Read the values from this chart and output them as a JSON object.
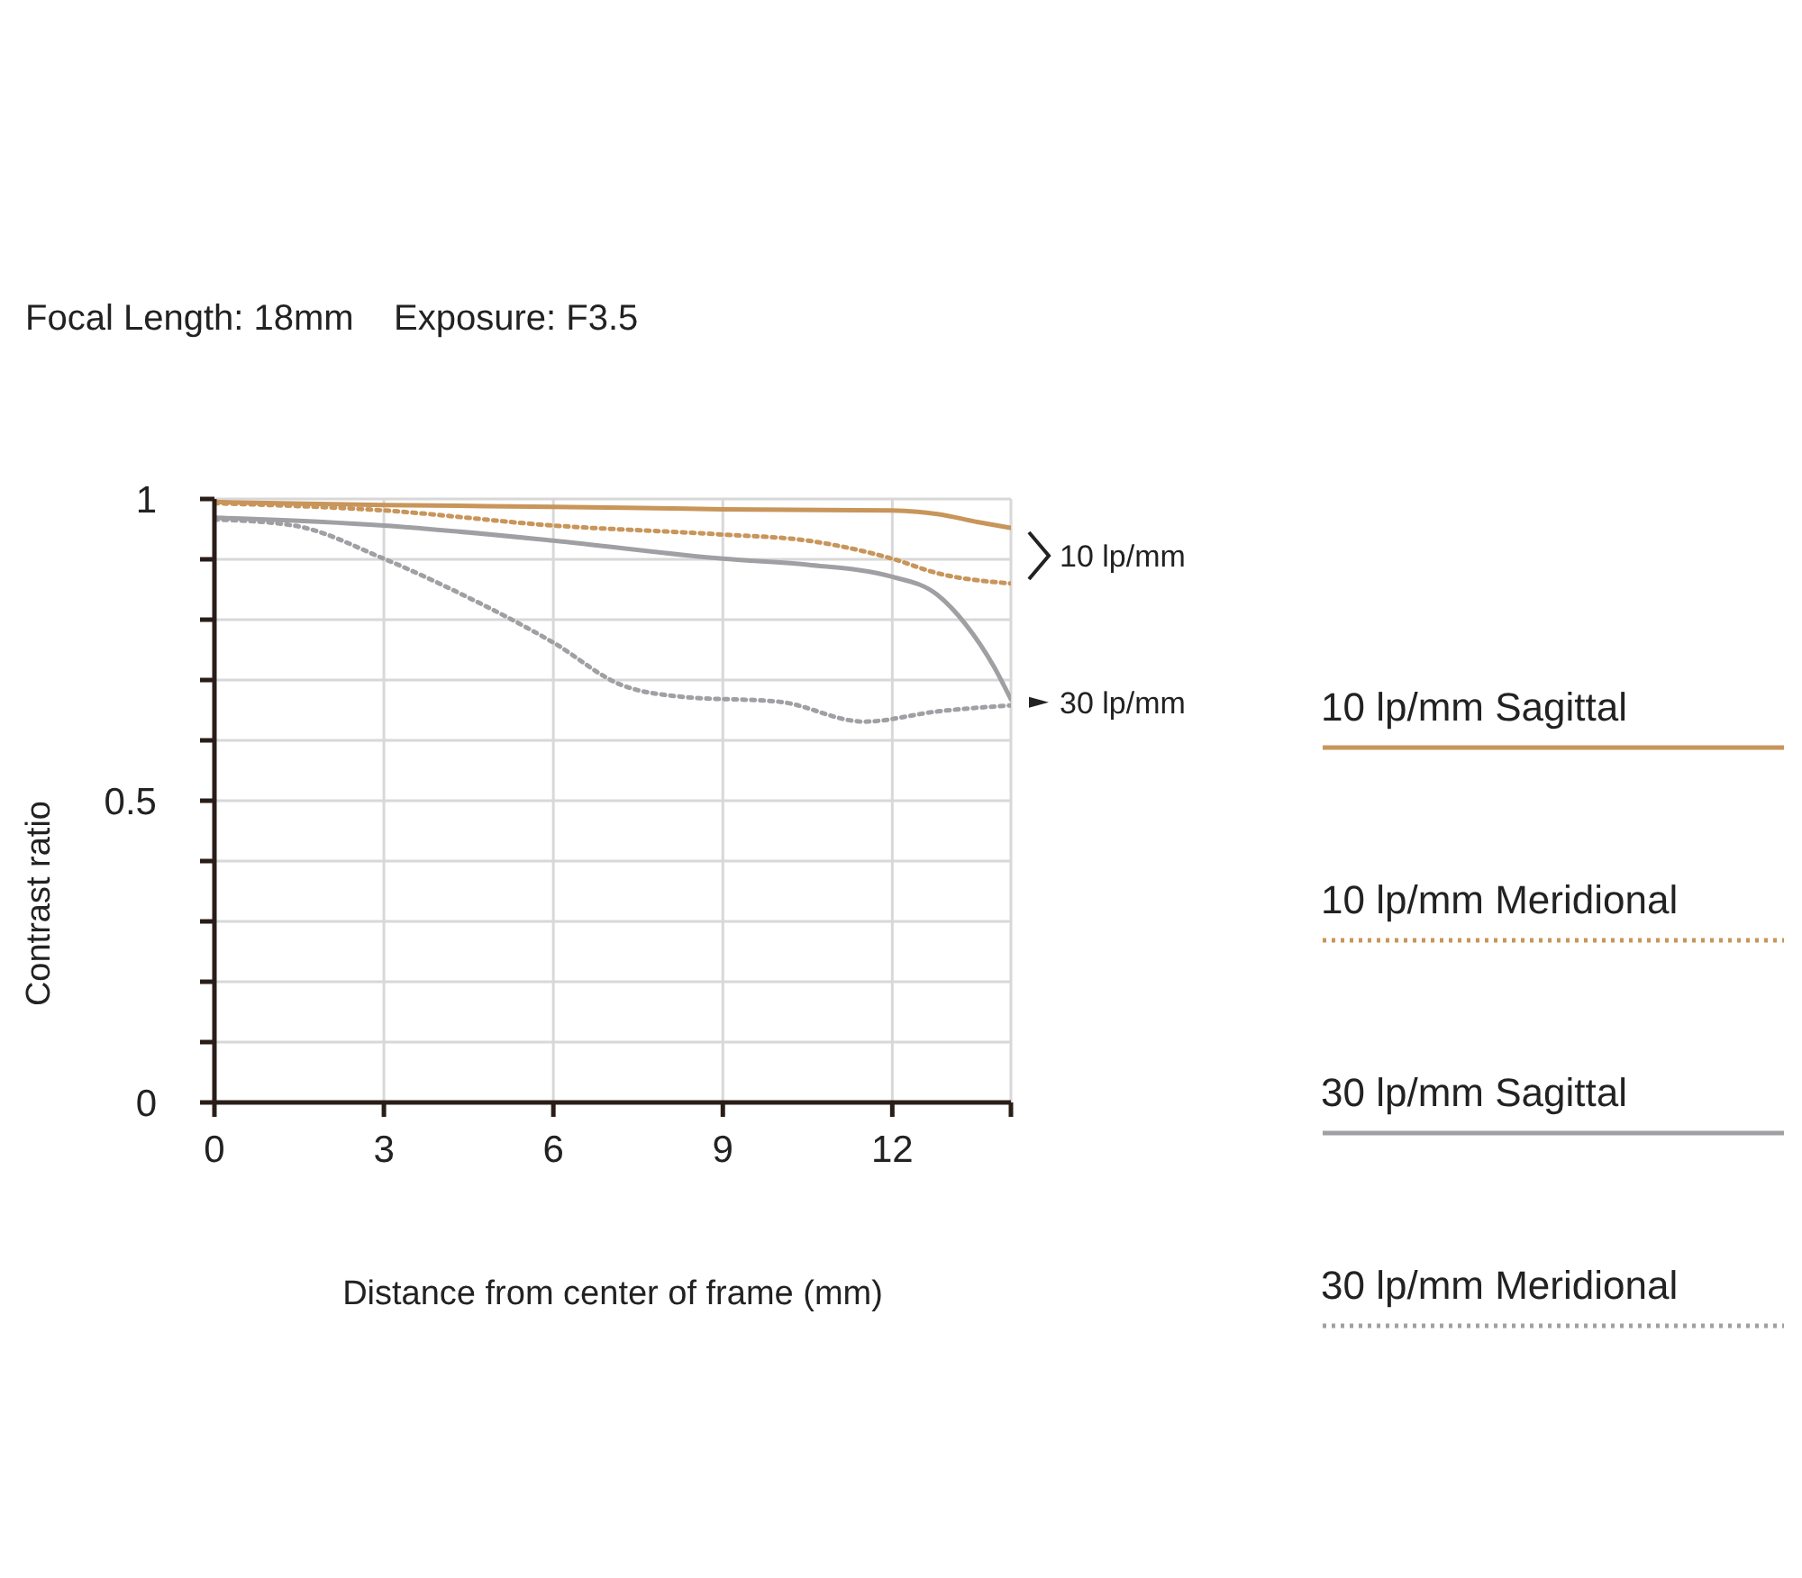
{
  "chart_data": {
    "type": "line",
    "title": "Focal Length: 18mm    Exposure: F3.5",
    "xlabel": "Distance from center of frame (mm)",
    "ylabel": "Contrast ratio",
    "xlim": [
      0,
      14.1
    ],
    "xticks": [
      0,
      3,
      6,
      9,
      12,
      {
        "value": 14.1,
        "label": null
      }
    ],
    "ylim": [
      0,
      1
    ],
    "yticks": [
      0,
      {
        "value": 0.1,
        "label": null
      },
      {
        "value": 0.2,
        "label": null
      },
      {
        "value": 0.3,
        "label": null
      },
      {
        "value": 0.4,
        "label": null
      },
      0.5,
      {
        "value": 0.6,
        "label": null
      },
      {
        "value": 0.7,
        "label": null
      },
      {
        "value": 0.8,
        "label": null
      },
      {
        "value": 0.9,
        "label": null
      },
      1
    ],
    "grid": true,
    "legend": "right",
    "marker": "none",
    "annotations": [
      "10 lp/mm",
      "30 lp/mm"
    ],
    "series": [
      {
        "name": "10 lp/mm Sagittal",
        "color": "#c8955a",
        "line_style": "solid",
        "x": [
          0,
          3,
          6,
          9,
          12,
          12.8,
          13.5,
          14.1
        ],
        "values": [
          0.995,
          0.99,
          0.987,
          0.983,
          0.981,
          0.975,
          0.962,
          0.952
        ]
      },
      {
        "name": "10 lp/mm Meridional",
        "color": "#c8955a",
        "line_style": "dotted",
        "x": [
          0,
          3,
          6,
          9,
          10.5,
          12,
          12.8,
          14.1
        ],
        "values": [
          0.993,
          0.981,
          0.956,
          0.941,
          0.931,
          0.901,
          0.877,
          0.86
        ]
      },
      {
        "name": "30 lp/mm Sagittal",
        "color": "#a0a0a4",
        "line_style": "solid",
        "x": [
          0,
          3,
          6,
          9,
          10.5,
          12,
          12.8,
          13.3,
          13.8,
          14.1
        ],
        "values": [
          0.969,
          0.956,
          0.931,
          0.901,
          0.891,
          0.871,
          0.841,
          0.792,
          0.722,
          0.668
        ]
      },
      {
        "name": "30 lp/mm Meridional",
        "color": "#a0a0a4",
        "line_style": "dotted",
        "x": [
          0,
          1.4,
          3,
          4.4,
          6,
          7.2,
          8.3,
          10,
          11.5,
          12.8,
          14.1
        ],
        "values": [
          0.966,
          0.956,
          0.901,
          0.841,
          0.762,
          0.692,
          0.672,
          0.664,
          0.631,
          0.648,
          0.658
        ]
      }
    ]
  }
}
